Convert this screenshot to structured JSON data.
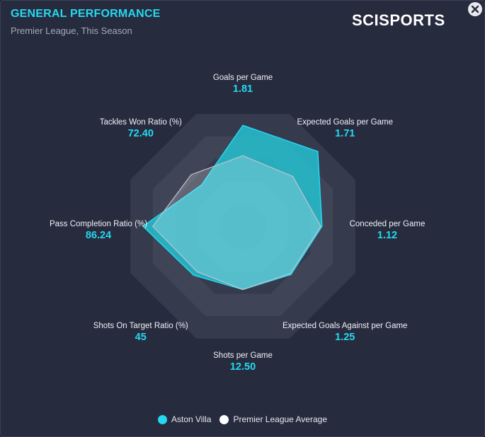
{
  "header": {
    "title": "GENERAL PERFORMANCE",
    "subtitle": "Premier League, This Season",
    "brand": "SCISPORTS"
  },
  "colors": {
    "accent": "#25d8f0",
    "team": "#25c6d6",
    "average": "#ffffff",
    "ring_dark": "#353a4d",
    "ring_light": "#3f4457",
    "text": "#f0f2f6"
  },
  "icons": {
    "close": "close-icon",
    "legend_marker": "circle-icon"
  },
  "chart_data": {
    "type": "radar",
    "title": "GENERAL PERFORMANCE",
    "axes": [
      {
        "label": "Goals per Game",
        "value_text": "1.81"
      },
      {
        "label": "Expected Goals per Game",
        "value_text": "1.71"
      },
      {
        "label": "Conceded per Game",
        "value_text": "1.12"
      },
      {
        "label": "Expected Goals Against per Game",
        "value_text": "1.25"
      },
      {
        "label": "Shots per Game",
        "value_text": "12.50"
      },
      {
        "label": "Shots On Target Ratio (%)",
        "value_text": "45"
      },
      {
        "label": "Pass Completion Ratio (%)",
        "value_text": "86.24"
      },
      {
        "label": "Tackles Won Ratio (%)",
        "value_text": "72.40"
      }
    ],
    "scale": [
      0,
      1
    ],
    "rings": 5,
    "series": [
      {
        "name": "Aston Villa",
        "values": [
          0.83,
          0.87,
          0.65,
          0.56,
          0.52,
          0.57,
          0.82,
          0.48
        ]
      },
      {
        "name": "Premier League Average",
        "values": [
          0.58,
          0.58,
          0.64,
          0.55,
          0.52,
          0.53,
          0.74,
          0.6
        ]
      }
    ],
    "legend_position": "bottom-center"
  }
}
